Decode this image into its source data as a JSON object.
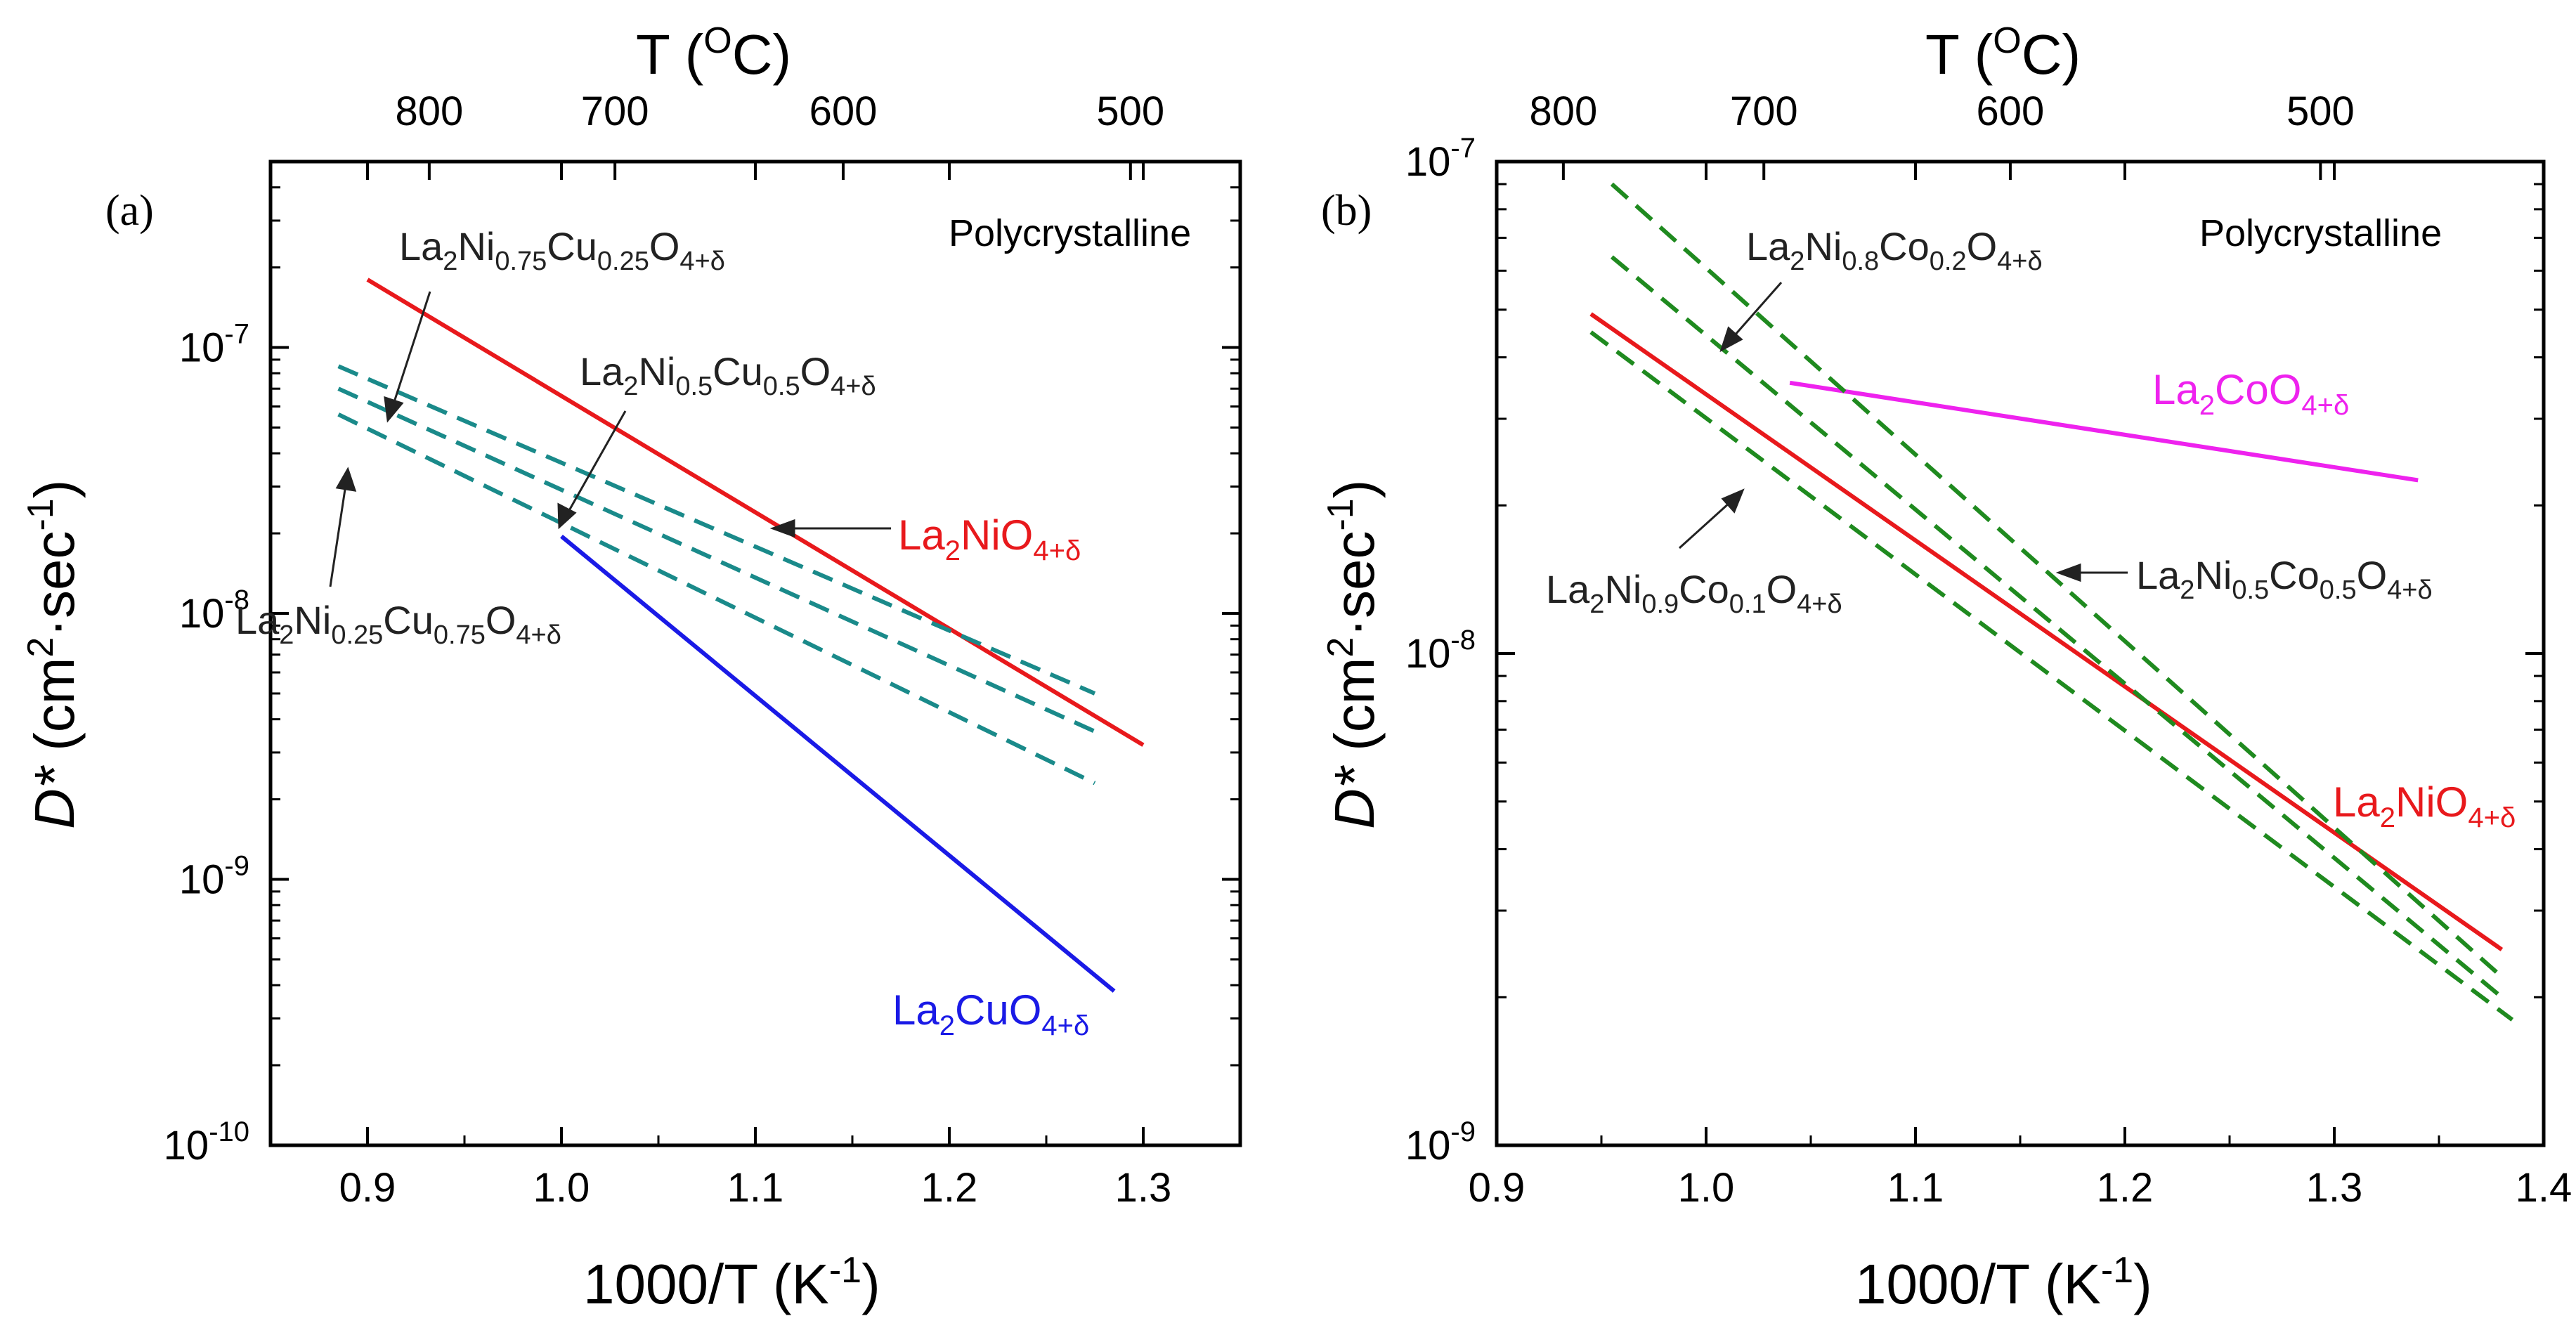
{
  "chart_data": [
    {
      "type": "line",
      "panel_label": "(a)",
      "annotation": "Polycrystalline",
      "xlabel": "1000/T (K⁻¹)",
      "ylabel": "D* (cm²·sec⁻¹)",
      "top_axis_label": "T (°C)",
      "xlim": [
        0.85,
        1.35
      ],
      "ylim": [
        1e-10,
        5e-07
      ],
      "y_scale": "log",
      "x_ticks": [
        0.9,
        1.0,
        1.1,
        1.2,
        1.3
      ],
      "x_tick_labels": [
        "0.9",
        "1.0",
        "1.1",
        "1.2",
        "1.3"
      ],
      "y_ticks": [
        1e-10,
        1e-09,
        1e-08,
        1e-07
      ],
      "y_tick_exponents": [
        "-10",
        "-9",
        "-8",
        "-7"
      ],
      "top_ticks_celsius": [
        800,
        700,
        600,
        500
      ],
      "series": [
        {
          "name": "La2NiO4+δ",
          "color": "#e8191c",
          "style": "solid",
          "x": [
            0.9,
            1.3
          ],
          "y": [
            1.8e-07,
            3.2e-09
          ]
        },
        {
          "name": "La2CuO4+δ",
          "color": "#1a1ae6",
          "style": "solid",
          "x": [
            1.0,
            1.285
          ],
          "y": [
            1.95e-08,
            3.8e-10
          ]
        },
        {
          "name": "La2Ni0.75Cu0.25O4+δ",
          "color": "#1a8a8a",
          "style": "dashed",
          "x": [
            0.885,
            1.275
          ],
          "y": [
            8.5e-08,
            5e-09
          ]
        },
        {
          "name": "La2Ni0.5Cu0.5O4+δ",
          "color": "#1a8a8a",
          "style": "dashed",
          "x": [
            0.885,
            1.275
          ],
          "y": [
            7e-08,
            3.6e-09
          ]
        },
        {
          "name": "La2Ni0.25Cu0.75O4+δ",
          "color": "#1a8a8a",
          "style": "dashed",
          "x": [
            0.885,
            1.275
          ],
          "y": [
            5.6e-08,
            2.3e-09
          ]
        }
      ]
    },
    {
      "type": "line",
      "panel_label": "(b)",
      "annotation": "Polycrystalline",
      "xlabel": "1000/T (K⁻¹)",
      "ylabel": "D* (cm²·sec⁻¹)",
      "top_axis_label": "T (°C)",
      "xlim": [
        0.9,
        1.4
      ],
      "ylim": [
        1e-09,
        1e-07
      ],
      "y_scale": "log",
      "x_ticks": [
        0.9,
        1.0,
        1.1,
        1.2,
        1.3,
        1.4
      ],
      "x_tick_labels": [
        "0.9",
        "1.0",
        "1.1",
        "1.2",
        "1.3",
        "1.4"
      ],
      "y_ticks": [
        1e-09,
        1e-08,
        1e-07
      ],
      "y_tick_exponents": [
        "-9",
        "-8",
        "-7"
      ],
      "top_ticks_celsius": [
        800,
        700,
        600,
        500
      ],
      "series": [
        {
          "name": "La2NiO4+δ",
          "color": "#e8191c",
          "style": "solid",
          "x": [
            0.945,
            1.38
          ],
          "y": [
            4.9e-08,
            2.5e-09
          ]
        },
        {
          "name": "La2CoO4+δ",
          "color": "#ee22ee",
          "style": "solid",
          "x": [
            1.04,
            1.34
          ],
          "y": [
            3.55e-08,
            2.25e-08
          ]
        },
        {
          "name": "La2Ni0.8Co0.2O4+δ",
          "color": "#1f8a1f",
          "style": "dashed",
          "x": [
            0.955,
            1.38
          ],
          "y": [
            9e-08,
            2.2e-09
          ]
        },
        {
          "name": "La2Ni0.5Co0.5O4+δ",
          "color": "#1f8a1f",
          "style": "dashed",
          "x": [
            0.955,
            1.38
          ],
          "y": [
            6.4e-08,
            2e-09
          ]
        },
        {
          "name": "La2Ni0.9Co0.1O4+δ",
          "color": "#1f8a1f",
          "style": "dashed",
          "x": [
            0.945,
            1.385
          ],
          "y": [
            4.5e-08,
            1.8e-09
          ]
        }
      ]
    }
  ],
  "labels": {
    "a_lanio": {
      "base": "La",
      "s1": "2",
      "mid": "NiO",
      "s2": "4+δ"
    },
    "a_lacuo": {
      "base": "La",
      "s1": "2",
      "mid": "CuO",
      "s2": "4+δ"
    },
    "a_nicu075": {
      "p1": "La",
      "s1": "2",
      "p2": "Ni",
      "s2": "0.75",
      "p3": "Cu",
      "s3": "0.25",
      "p4": "O",
      "s4": "4+δ"
    },
    "a_nicu05": {
      "p1": "La",
      "s1": "2",
      "p2": "Ni",
      "s2": "0.5",
      "p3": "Cu",
      "s3": "0.5",
      "p4": "O",
      "s4": "4+δ"
    },
    "a_nicu025": {
      "p1": "La",
      "s1": "2",
      "p2": "Ni",
      "s2": "0.25",
      "p3": "Cu",
      "s3": "0.75",
      "p4": "O",
      "s4": "4+δ"
    },
    "b_lanio": {
      "base": "La",
      "s1": "2",
      "mid": "NiO",
      "s2": "4+δ"
    },
    "b_lacoo": {
      "base": "La",
      "s1": "2",
      "mid": "CoO",
      "s2": "4+δ"
    },
    "b_nico08": {
      "p1": "La",
      "s1": "2",
      "p2": "Ni",
      "s2": "0.8",
      "p3": "Co",
      "s3": "0.2",
      "p4": "O",
      "s4": "4+δ"
    },
    "b_nico05": {
      "p1": "La",
      "s1": "2",
      "p2": "Ni",
      "s2": "0.5",
      "p3": "Co",
      "s3": "0.5",
      "p4": "O",
      "s4": "4+δ"
    },
    "b_nico09": {
      "p1": "La",
      "s1": "2",
      "p2": "Ni",
      "s2": "0.9",
      "p3": "Co",
      "s3": "0.1",
      "p4": "O",
      "s4": "4+δ"
    }
  },
  "axis_text": {
    "top_T": "T (",
    "top_O": "O",
    "top_C": "C)",
    "y_D": "D*",
    "y_cm": " (cm",
    "y_2": "2",
    "y_sec": "·sec",
    "y_m1": "-1",
    "y_close": ")",
    "x_main": "1000/T (K",
    "x_m1": "-1",
    "x_close": ")",
    "ten": "10"
  }
}
